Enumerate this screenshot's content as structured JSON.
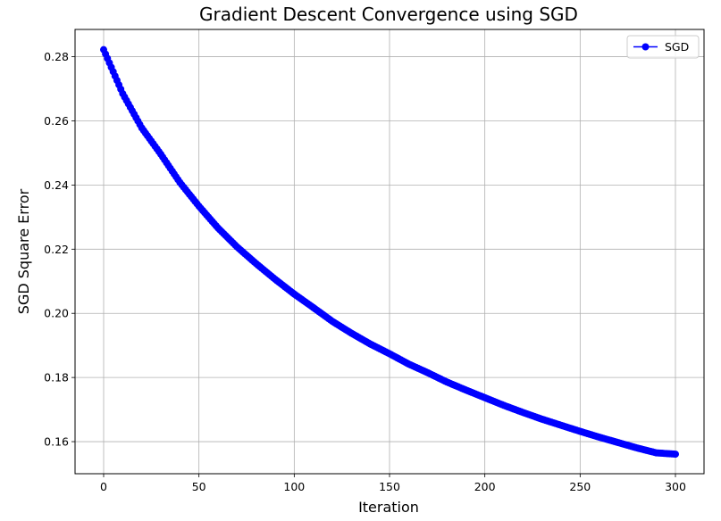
{
  "chart_data": {
    "type": "line",
    "title": "Gradient Descent Convergence using SGD",
    "xlabel": "Iteration",
    "ylabel": "SGD Square Error",
    "xlim": [
      -15,
      315
    ],
    "ylim": [
      0.15,
      0.2885
    ],
    "x_ticks": [
      0,
      50,
      100,
      150,
      200,
      250,
      300
    ],
    "y_ticks": [
      0.16,
      0.18,
      0.2,
      0.22,
      0.24,
      0.26,
      0.28
    ],
    "grid": true,
    "legend_position": "top-right",
    "marker": "circle",
    "x_range": [
      0,
      300
    ],
    "series": [
      {
        "name": "SGD",
        "color": "#0000ff",
        "x": [
          0,
          10,
          20,
          30,
          40,
          50,
          60,
          70,
          80,
          90,
          100,
          110,
          120,
          130,
          140,
          150,
          160,
          170,
          180,
          190,
          200,
          210,
          220,
          230,
          240,
          250,
          260,
          270,
          280,
          290,
          300
        ],
        "values": [
          0.2822,
          0.2685,
          0.2578,
          0.2496,
          0.2408,
          0.2334,
          0.2266,
          0.2207,
          0.2155,
          0.2106,
          0.206,
          0.2018,
          0.1975,
          0.1938,
          0.1904,
          0.1874,
          0.1842,
          0.1815,
          0.1786,
          0.1761,
          0.1737,
          0.1713,
          0.1691,
          0.167,
          0.1651,
          0.1632,
          0.1614,
          0.1597,
          0.158,
          0.1565,
          0.1561
        ]
      }
    ]
  }
}
